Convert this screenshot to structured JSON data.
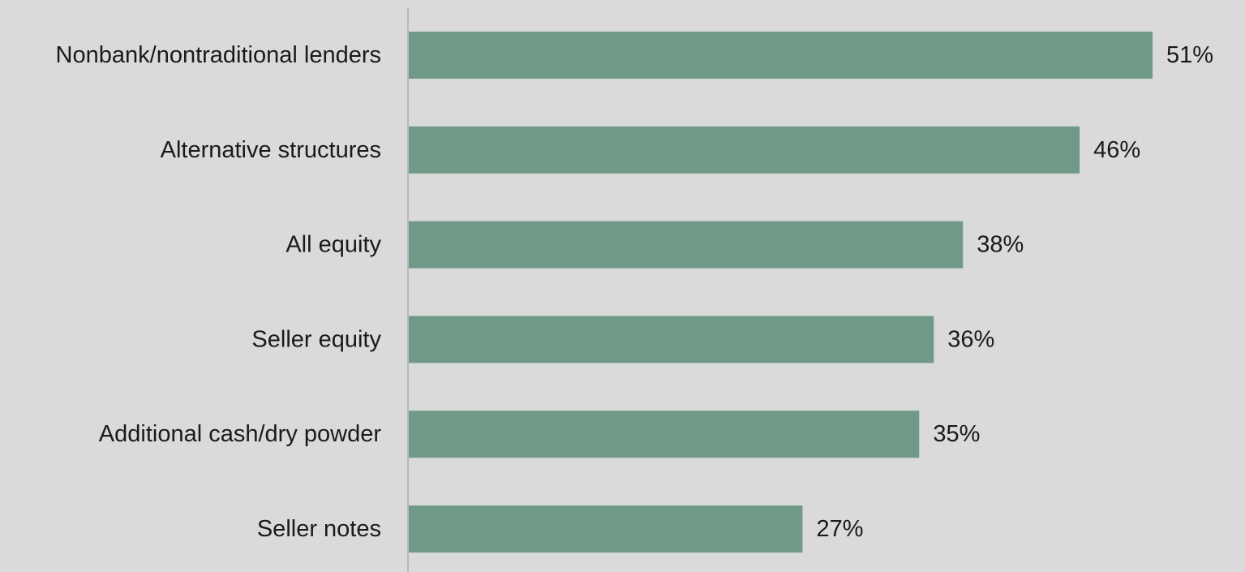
{
  "chart_data": {
    "type": "bar",
    "orientation": "horizontal",
    "title": "",
    "xlabel": "",
    "ylabel": "",
    "categories": [
      "Nonbank/nontraditional lenders",
      "Alternative structures",
      "All equity",
      "Seller equity",
      "Additional cash/dry powder",
      "Seller notes"
    ],
    "values": [
      51,
      46,
      38,
      36,
      35,
      27
    ],
    "value_labels": [
      "51%",
      "46%",
      "38%",
      "36%",
      "35%",
      "27%"
    ],
    "xlim": [
      0,
      51
    ],
    "grid": false,
    "legend": "none",
    "bar_color": "#6f9a88",
    "axis_color": "#b8b8b8",
    "background_color": "#dadada"
  }
}
